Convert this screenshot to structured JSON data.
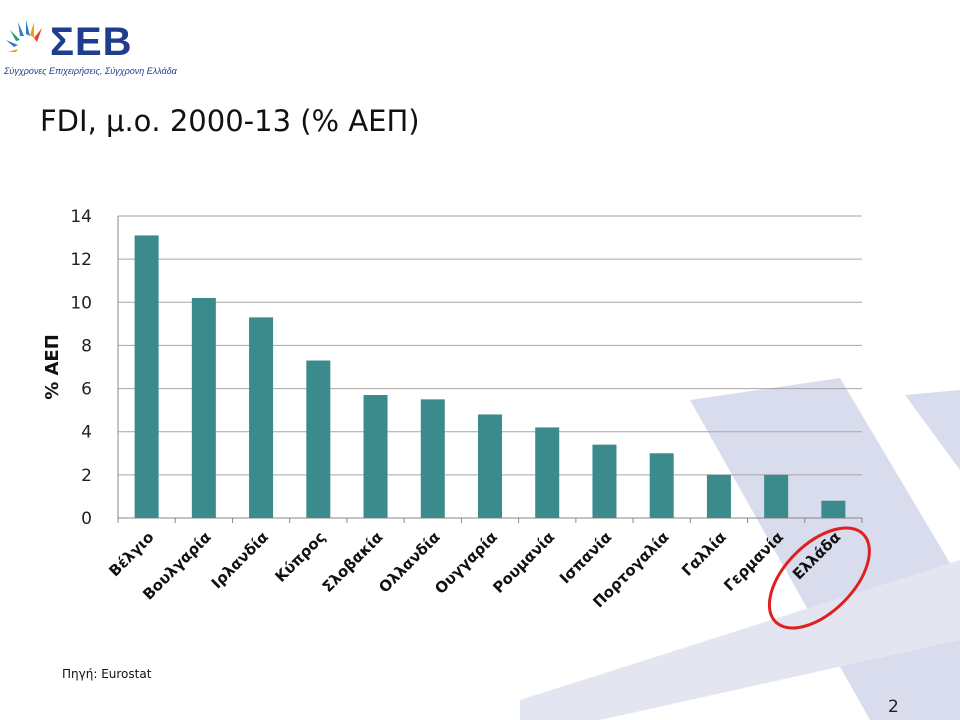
{
  "logo": {
    "text": "ΣΕΒ",
    "tagline": "Σύγχρονες Επιχειρήσεις, Σύγχρονη Ελλάδα"
  },
  "title": "FDI, μ.ο. 2000-13 (% ΑΕΠ)",
  "source": "Πηγή: Eurostat",
  "page_number": "2",
  "colors": {
    "bar": "#3b8a8c",
    "grid": "#a6a6a6",
    "highlight_ring": "#e02020",
    "brand": "#1f3d8f"
  },
  "chart_data": {
    "type": "bar",
    "categories": [
      "Βέλγιο",
      "Βουλγαρία",
      "Ιρλανδία",
      "Κύπρος",
      "Σλοβακία",
      "Ολλανδία",
      "Ουγγαρία",
      "Ρουμανία",
      "Ισπανία",
      "Πορτογαλία",
      "Γαλλία",
      "Γερμανία",
      "Ελλάδα"
    ],
    "values": [
      13.1,
      10.2,
      9.3,
      7.3,
      5.7,
      5.5,
      4.8,
      4.2,
      3.4,
      3.0,
      2.0,
      2.0,
      0.8
    ],
    "ylabel": "% ΑΕΠ",
    "ylim": [
      0,
      14
    ],
    "yticks": [
      "0",
      "2",
      "4",
      "6",
      "8",
      "10",
      "12",
      "14"
    ],
    "grid": true,
    "highlighted_category": "Ελλάδα"
  }
}
